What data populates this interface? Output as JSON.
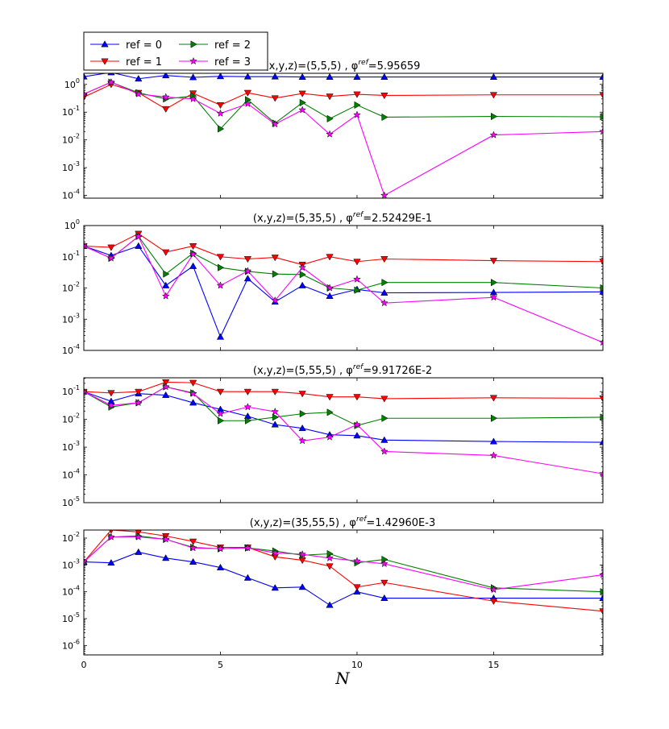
{
  "chart_data": {
    "type": "line",
    "xlabel": "N",
    "xlim": [
      0,
      19
    ],
    "x": [
      0,
      1,
      2,
      3,
      4,
      5,
      6,
      7,
      8,
      9,
      10,
      11,
      15,
      19
    ],
    "xticks": [
      "0",
      "5",
      "10",
      "15"
    ],
    "legend": {
      "placement": "top-left",
      "entries": [
        {
          "name": "ref = 0",
          "color": "#0000ff",
          "marker": "triangle-up"
        },
        {
          "name": "ref = 1",
          "color": "#ff0000",
          "marker": "triangle-down"
        },
        {
          "name": "ref = 2",
          "color": "#008000",
          "marker": "triangle-right"
        },
        {
          "name": "ref = 3",
          "color": "#ff00ff",
          "marker": "star"
        }
      ]
    },
    "panels": [
      {
        "title_prefix": "(x,y,z)=(5,5,5) , φ",
        "title_sup": "ref",
        "title_suffix": "=5.95659",
        "yscale": "log",
        "ylim_exp": [
          -4.1,
          0.4
        ],
        "yticks_exp": [
          -4,
          -3,
          -2,
          -1,
          0
        ],
        "series": [
          {
            "name": "ref = 0",
            "values": [
              1.9,
              2.7,
              1.6,
              2.1,
              1.8,
              1.95,
              1.9,
              1.9,
              1.85,
              1.85,
              1.85,
              1.85,
              1.85,
              1.85
            ]
          },
          {
            "name": "ref = 1",
            "values": [
              0.35,
              1.0,
              0.5,
              0.13,
              0.48,
              0.18,
              0.5,
              0.32,
              0.47,
              0.37,
              0.44,
              0.4,
              0.42,
              0.42
            ]
          },
          {
            "name": "ref = 2",
            "values": [
              0.45,
              1.2,
              0.5,
              0.3,
              0.38,
              0.025,
              0.28,
              0.04,
              0.22,
              0.058,
              0.18,
              0.066,
              0.07,
              0.068
            ]
          },
          {
            "name": "ref = 3",
            "values": [
              0.45,
              1.2,
              0.45,
              0.35,
              0.3,
              0.09,
              0.2,
              0.037,
              0.12,
              0.016,
              0.08,
              0.0001,
              0.015,
              0.02
            ]
          }
        ]
      },
      {
        "title_prefix": "(x,y,z)=(5,35,5) , φ",
        "title_sup": "ref",
        "title_suffix": "=2.52429E-1",
        "yscale": "log",
        "ylim_exp": [
          -4,
          0
        ],
        "yticks_exp": [
          -4,
          -3,
          -2,
          -1,
          0
        ],
        "series": [
          {
            "name": "ref = 0",
            "values": [
              0.22,
              0.11,
              0.22,
              0.012,
              0.05,
              0.00027,
              0.02,
              0.0036,
              0.012,
              0.0055,
              0.009,
              0.007,
              0.0072,
              0.0075
            ]
          },
          {
            "name": "ref = 1",
            "values": [
              0.22,
              0.2,
              0.55,
              0.14,
              0.22,
              0.1,
              0.085,
              0.095,
              0.056,
              0.1,
              0.07,
              0.085,
              0.075,
              0.07
            ]
          },
          {
            "name": "ref = 2",
            "values": [
              0.22,
              0.09,
              0.45,
              0.028,
              0.13,
              0.045,
              0.034,
              0.028,
              0.027,
              0.01,
              0.0085,
              0.015,
              0.015,
              0.01
            ]
          },
          {
            "name": "ref = 3",
            "values": [
              0.22,
              0.09,
              0.45,
              0.0055,
              0.12,
              0.012,
              0.035,
              0.004,
              0.045,
              0.01,
              0.019,
              0.0033,
              0.005,
              0.00018
            ]
          }
        ]
      },
      {
        "title_prefix": "(x,y,z)=(5,55,5) , φ",
        "title_sup": "ref",
        "title_suffix": "=9.91726E-2",
        "yscale": "log",
        "ylim_exp": [
          -5,
          -0.5
        ],
        "yticks_exp": [
          -5,
          -4,
          -3,
          -2,
          -1
        ],
        "series": [
          {
            "name": "ref = 0",
            "values": [
              0.1,
              0.045,
              0.085,
              0.075,
              0.04,
              0.023,
              0.013,
              0.0065,
              0.0048,
              0.0028,
              0.0026,
              0.0018,
              0.0016,
              0.0015
            ]
          },
          {
            "name": "ref = 1",
            "values": [
              0.1,
              0.09,
              0.1,
              0.22,
              0.21,
              0.1,
              0.1,
              0.1,
              0.085,
              0.065,
              0.065,
              0.056,
              0.06,
              0.058
            ]
          },
          {
            "name": "ref = 2",
            "values": [
              0.1,
              0.028,
              0.04,
              0.15,
              0.09,
              0.009,
              0.009,
              0.012,
              0.016,
              0.018,
              0.006,
              0.011,
              0.011,
              0.012
            ]
          },
          {
            "name": "ref = 3",
            "values": [
              0.1,
              0.032,
              0.04,
              0.15,
              0.085,
              0.016,
              0.028,
              0.019,
              0.0017,
              0.0023,
              0.0065,
              0.0007,
              0.0005,
              0.00011
            ]
          }
        ]
      },
      {
        "title_prefix": "(x,y,z)=(35,55,5) , φ",
        "title_sup": "ref",
        "title_suffix": "=1.42960E-3",
        "yscale": "log",
        "ylim_exp": [
          -6.35,
          -1.7
        ],
        "yticks_exp": [
          -6,
          -5,
          -4,
          -3,
          -2
        ],
        "series": [
          {
            "name": "ref = 0",
            "values": [
              0.0013,
              0.0012,
              0.003,
              0.0018,
              0.0013,
              0.0008,
              0.00033,
              0.00014,
              0.00015,
              3.2e-05,
              0.0001,
              5.8e-05,
              5.8e-05,
              5.8e-05
            ]
          },
          {
            "name": "ref = 1",
            "values": [
              0.0013,
              0.02,
              0.017,
              0.012,
              0.0075,
              0.0045,
              0.0045,
              0.002,
              0.0015,
              0.0009,
              0.00015,
              0.00022,
              4.5e-05,
              1.9e-05
            ]
          },
          {
            "name": "ref = 2",
            "values": [
              0.0013,
              0.011,
              0.012,
              0.009,
              0.0045,
              0.004,
              0.0043,
              0.0033,
              0.0023,
              0.0026,
              0.0012,
              0.0016,
              0.00014,
              0.0001
            ]
          },
          {
            "name": "ref = 3",
            "values": [
              0.0013,
              0.011,
              0.011,
              0.009,
              0.0043,
              0.004,
              0.0043,
              0.0028,
              0.0025,
              0.0018,
              0.0014,
              0.0011,
              0.00012,
              0.00043
            ]
          }
        ]
      }
    ]
  }
}
